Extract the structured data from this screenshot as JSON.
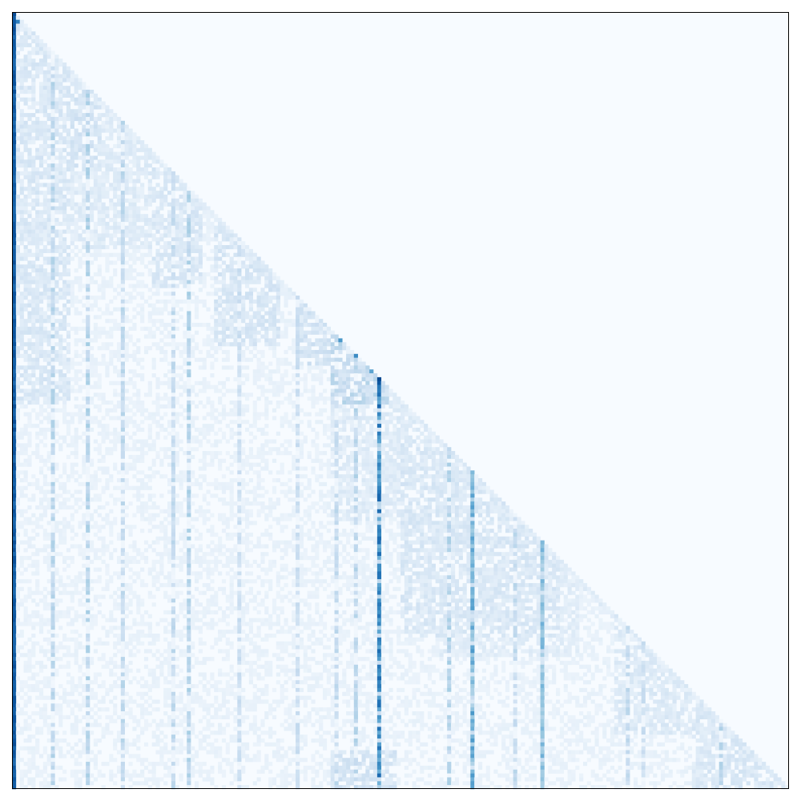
{
  "chart_data": {
    "type": "heatmap",
    "mask": "lower-triangular",
    "grid": false,
    "legend": "none",
    "title": "",
    "xlabel": "",
    "ylabel": "",
    "n": 200,
    "value_range": [
      0,
      1
    ],
    "colormap": {
      "name": "Blues",
      "stops": [
        "#f7fbff",
        "#deebf7",
        "#c6dbef",
        "#9ecae1",
        "#6baed6",
        "#4292c6",
        "#2171b5",
        "#08519c",
        "#08306b"
      ]
    },
    "first_column_value": 0.9,
    "strong_columns": [
      {
        "index": 94,
        "value": 0.72
      },
      {
        "index": 118,
        "value": 0.55
      },
      {
        "index": 136,
        "value": 0.45
      }
    ],
    "moderate_columns": [
      {
        "index": 10,
        "value": 0.28
      },
      {
        "index": 19,
        "value": 0.3
      },
      {
        "index": 28,
        "value": 0.26
      },
      {
        "index": 41,
        "value": 0.25
      },
      {
        "index": 45,
        "value": 0.3
      },
      {
        "index": 58,
        "value": 0.22
      },
      {
        "index": 73,
        "value": 0.22
      },
      {
        "index": 83,
        "value": 0.25
      },
      {
        "index": 88,
        "value": 0.28
      },
      {
        "index": 112,
        "value": 0.3
      },
      {
        "index": 129,
        "value": 0.25
      },
      {
        "index": 158,
        "value": 0.25
      },
      {
        "index": 162,
        "value": 0.22
      },
      {
        "index": 182,
        "value": 0.3
      }
    ],
    "bright_cells": [
      {
        "row": 2,
        "col": 0,
        "value": 0.85
      },
      {
        "row": 2,
        "col": 1,
        "value": 0.7
      },
      {
        "row": 84,
        "col": 84,
        "value": 0.6
      },
      {
        "row": 88,
        "col": 88,
        "value": 0.65
      },
      {
        "row": 92,
        "col": 92,
        "value": 0.55
      },
      {
        "row": 94,
        "col": 94,
        "value": 0.9
      },
      {
        "row": 95,
        "col": 94,
        "value": 0.85
      },
      {
        "row": 118,
        "col": 118,
        "value": 0.45
      },
      {
        "row": 136,
        "col": 136,
        "value": 0.45
      }
    ],
    "blocks": [
      {
        "rows": [
          3,
          100
        ],
        "cols": [
          0,
          14
        ],
        "value": 0.12
      },
      {
        "rows": [
          3,
          60
        ],
        "cols": [
          0,
          40
        ],
        "value": 0.1
      },
      {
        "rows": [
          20,
          40
        ],
        "cols": [
          15,
          22
        ],
        "value": 0.14
      },
      {
        "rows": [
          40,
          70
        ],
        "cols": [
          36,
          48
        ],
        "value": 0.12
      },
      {
        "rows": [
          55,
          85
        ],
        "cols": [
          52,
          68
        ],
        "value": 0.13
      },
      {
        "rows": [
          75,
          90
        ],
        "cols": [
          74,
          86
        ],
        "value": 0.15
      },
      {
        "rows": [
          82,
          100
        ],
        "cols": [
          82,
          96
        ],
        "value": 0.2
      },
      {
        "rows": [
          95,
          130
        ],
        "cols": [
          82,
          130
        ],
        "value": 0.1
      },
      {
        "rows": [
          110,
          160
        ],
        "cols": [
          100,
          140
        ],
        "value": 0.12
      },
      {
        "rows": [
          125,
          165
        ],
        "cols": [
          110,
          145
        ],
        "value": 0.09
      },
      {
        "rows": [
          155,
          185
        ],
        "cols": [
          155,
          175
        ],
        "value": 0.11
      },
      {
        "rows": [
          175,
          200
        ],
        "cols": [
          175,
          200
        ],
        "value": 0.12
      },
      {
        "rows": [
          190,
          200
        ],
        "cols": [
          82,
          98
        ],
        "value": 0.14
      }
    ],
    "base_value": 0.05
  }
}
